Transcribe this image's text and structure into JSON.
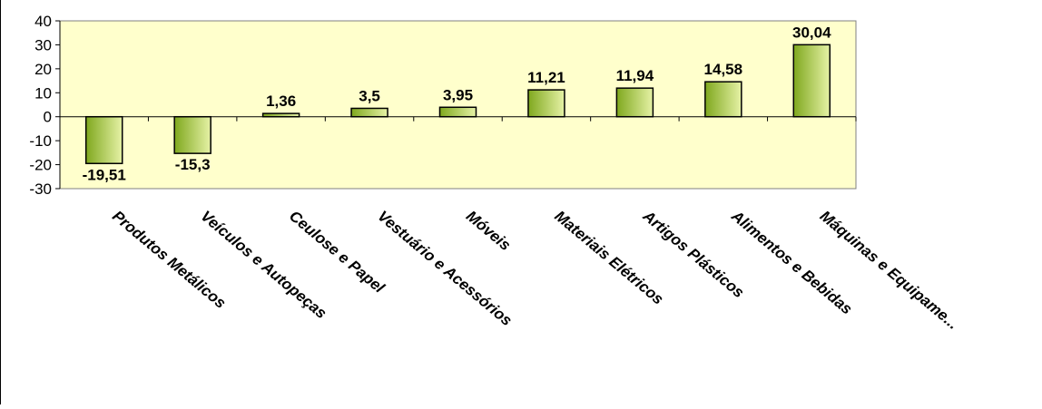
{
  "chart_data": {
    "type": "bar",
    "title": "",
    "xlabel": "",
    "ylabel": "",
    "ylim": [
      -30,
      40
    ],
    "yticks": [
      40,
      30,
      20,
      10,
      0,
      -10,
      -20,
      -30
    ],
    "grid": false,
    "legend": "none",
    "categories": [
      "Produtos Metálicos",
      "Veículos e Autopeças",
      "Ceulose e Papel",
      "Vestuário e Acessórios",
      "Móveis",
      "Materiais Elétricos",
      "Artigos Plásticos",
      "Alimentos e Bebidas",
      "Máquinas e Equipame..."
    ],
    "values": [
      -19.51,
      -15.3,
      1.36,
      3.5,
      3.95,
      11.21,
      11.94,
      14.58,
      30.04
    ],
    "data_labels": [
      "-19,51",
      "-15,3",
      "1,36",
      "3,5",
      "3,95",
      "11,21",
      "11,94",
      "14,58",
      "30,04"
    ],
    "colors": {
      "plot_background": "#ffffcc",
      "bar_light": "#e6f2a6",
      "bar_dark": "#7fa81e",
      "bar_border": "#000000",
      "axis": "#000000"
    }
  }
}
